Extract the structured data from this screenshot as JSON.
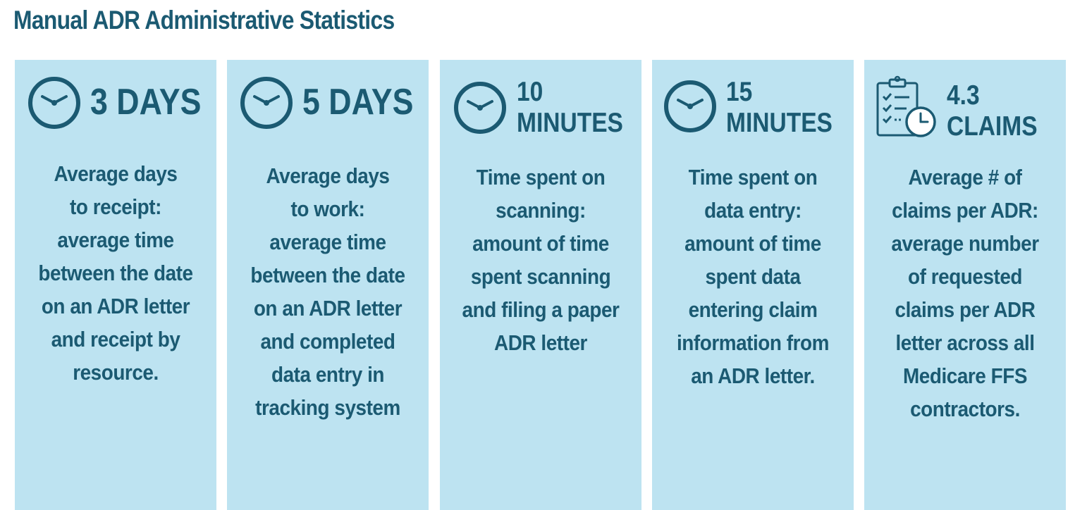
{
  "title": "Manual ADR Administrative Statistics",
  "colors": {
    "card_bg": "#bde3f1",
    "text": "#1b5a72",
    "page_bg": "#ffffff"
  },
  "cards": [
    {
      "icon": "clock-icon",
      "stat_line1": "3 DAYS",
      "stat_line2": "",
      "description": "Average days\nto receipt:\naverage time\nbetween the date\non an ADR letter\nand receipt by\nresource."
    },
    {
      "icon": "clock-icon",
      "stat_line1": "5 DAYS",
      "stat_line2": "",
      "description": "Average days\nto work:\naverage time\nbetween the date\non an ADR letter\nand completed\ndata entry in\ntracking system"
    },
    {
      "icon": "clock-icon",
      "stat_line1": "10",
      "stat_line2": "MINUTES",
      "description": "Time spent on\nscanning:\namount of time\nspent scanning\nand filing a paper\nADR letter"
    },
    {
      "icon": "clock-icon",
      "stat_line1": "15",
      "stat_line2": "MINUTES",
      "description": "Time spent on\ndata entry:\namount of time\nspent data\nentering claim\ninformation from\nan ADR letter."
    },
    {
      "icon": "clipboard-checklist-clock-icon",
      "stat_line1": "4.3",
      "stat_line2": "CLAIMS",
      "description": "Average # of\nclaims per ADR:\naverage number\nof requested\nclaims per ADR\nletter across all\nMedicare FFS\ncontractors."
    }
  ]
}
